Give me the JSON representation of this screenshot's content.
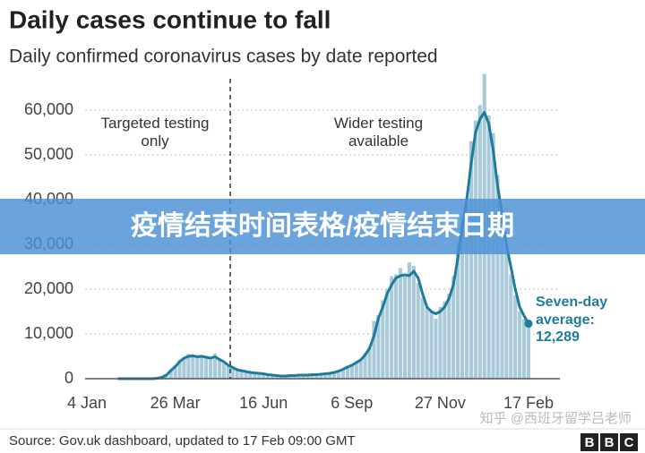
{
  "chart_data": {
    "type": "bar",
    "title": "Daily cases continue to fall",
    "subtitle": "Daily confirmed coronavirus cases by date reported",
    "annotations": [
      "Targeted testing only",
      "Wider testing available"
    ],
    "categories": [
      "4 Jan",
      null,
      null,
      null,
      null,
      null,
      null,
      null,
      null,
      null,
      null,
      null,
      null,
      null,
      null,
      null,
      null,
      null,
      null,
      null,
      "26 Mar",
      null,
      null,
      null,
      null,
      null,
      null,
      null,
      null,
      null,
      null,
      null,
      null,
      null,
      null,
      null,
      null,
      null,
      null,
      null,
      "16 Jun",
      null,
      null,
      null,
      null,
      null,
      null,
      null,
      null,
      null,
      null,
      null,
      null,
      null,
      null,
      null,
      null,
      null,
      null,
      null,
      "6 Sep",
      null,
      null,
      null,
      null,
      null,
      null,
      null,
      null,
      null,
      null,
      null,
      null,
      null,
      null,
      null,
      null,
      null,
      null,
      null,
      "27 Nov",
      null,
      null,
      null,
      null,
      null,
      null,
      null,
      null,
      null,
      null,
      null,
      null,
      null,
      null,
      null,
      null,
      null,
      null,
      null,
      "17 Feb"
    ],
    "series": [
      {
        "type": "bar",
        "color": "#a9cad8",
        "values": [
          null,
          null,
          null,
          null,
          null,
          null,
          null,
          0,
          0,
          0,
          0,
          0,
          0,
          0,
          0,
          0,
          200,
          400,
          1000,
          2100,
          2900,
          4200,
          4800,
          5500,
          5300,
          4600,
          5200,
          4900,
          4400,
          5600,
          4100,
          3500,
          2900,
          2400,
          1900,
          1700,
          1500,
          1300,
          1200,
          1100,
          1000,
          900,
          800,
          700,
          600,
          600,
          700,
          800,
          800,
          900,
          800,
          1000,
          900,
          1100,
          1200,
          1300,
          1500,
          1800,
          2300,
          2900,
          3000,
          3900,
          4400,
          5700,
          7100,
          12900,
          14200,
          17500,
          20000,
          22900,
          23300,
          24700,
          22800,
          26000,
          25200,
          21400,
          18100,
          15900,
          14900,
          13400,
          16000,
          17300,
          19000,
          22900,
          30500,
          35900,
          39200,
          53100,
          57700,
          61100,
          68100,
          58800,
          54900,
          45500,
          37500,
          29100,
          23300,
          18600,
          15100,
          13300,
          12700
        ]
      },
      {
        "type": "line",
        "name": "Seven-day average:",
        "color": "#1d7c9b",
        "values": [
          null,
          null,
          null,
          null,
          null,
          null,
          null,
          0,
          0,
          0,
          0,
          0,
          0,
          0,
          0,
          0,
          100,
          300,
          800,
          1800,
          2700,
          3800,
          4600,
          5000,
          5100,
          4900,
          5000,
          4800,
          4600,
          4900,
          4300,
          3800,
          3000,
          2500,
          2000,
          1800,
          1600,
          1400,
          1300,
          1200,
          1100,
          900,
          800,
          700,
          600,
          600,
          700,
          700,
          800,
          800,
          800,
          900,
          900,
          1000,
          1100,
          1200,
          1400,
          1700,
          2100,
          2600,
          3000,
          3600,
          4200,
          5300,
          6800,
          9500,
          13500,
          16000,
          19000,
          21000,
          22500,
          23000,
          23200,
          23000,
          24000,
          22500,
          19000,
          16000,
          15000,
          14500,
          15000,
          16000,
          18000,
          21000,
          27000,
          34000,
          40000,
          48000,
          55000,
          58000,
          59500,
          57000,
          51000,
          43000,
          37000,
          30000,
          25000,
          20000,
          16000,
          14000,
          12289
        ],
        "value_labels": [
          null,
          null,
          null,
          null,
          null,
          null,
          null,
          null,
          null,
          null,
          null,
          null,
          null,
          null,
          null,
          null,
          null,
          null,
          null,
          null,
          null,
          null,
          null,
          null,
          null,
          null,
          null,
          null,
          null,
          null,
          null,
          null,
          null,
          null,
          null,
          null,
          null,
          null,
          null,
          null,
          null,
          null,
          null,
          null,
          null,
          null,
          null,
          null,
          null,
          null,
          null,
          null,
          null,
          null,
          null,
          null,
          null,
          null,
          null,
          null,
          null,
          null,
          null,
          null,
          null,
          null,
          null,
          null,
          null,
          null,
          null,
          null,
          null,
          null,
          null,
          null,
          null,
          null,
          null,
          null,
          null,
          null,
          null,
          null,
          null,
          null,
          null,
          null,
          null,
          null,
          null,
          null,
          null,
          null,
          null,
          null,
          null,
          null,
          null,
          null,
          "12,289"
        ]
      }
    ],
    "ylim": [
      0,
      70000
    ],
    "yticks": [
      0,
      {
        "value": 10000,
        "label": "10,000"
      },
      {
        "value": 20000,
        "label": "20,000"
      },
      {
        "value": 30000,
        "label": "30,000"
      },
      {
        "value": 40000,
        "label": "40,000"
      },
      {
        "value": 50000,
        "label": "50,000"
      },
      {
        "value": 60000,
        "label": "60,000"
      }
    ],
    "grid": true,
    "source": "Source: Gov.uk dashboard, updated to 17 Feb 09:00 GMT"
  },
  "banner": "疫情结束时间表格/疫情结束日期",
  "watermark": "知乎 @西班牙留学吕老师",
  "logo": [
    "B",
    "B",
    "C"
  ]
}
